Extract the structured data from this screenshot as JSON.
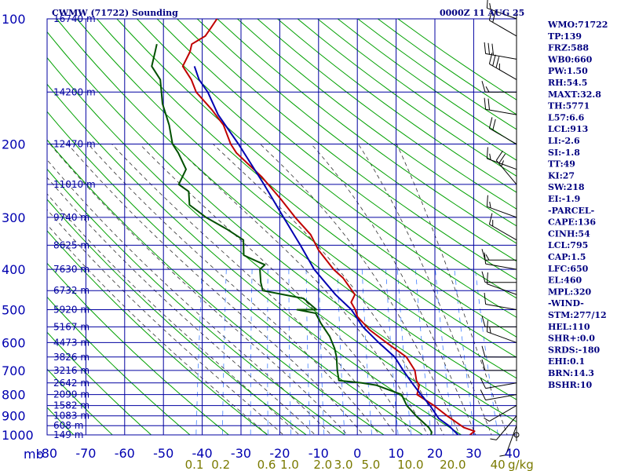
{
  "chart_data": {
    "type": "line",
    "title_left": "CWMW (71722) Sounding",
    "title_right": "0000Z 11 AUG 25",
    "y_axis_unit": "mb",
    "x_axis_unit": "g/kg",
    "pressure_ticks": [
      "100",
      "200",
      "300",
      "400",
      "500",
      "600",
      "700",
      "800",
      "900",
      "1000"
    ],
    "pressure_values": [
      100,
      200,
      300,
      400,
      500,
      600,
      700,
      800,
      900,
      1000
    ],
    "temperature_ticks": [
      "-80",
      "-70",
      "-60",
      "-50",
      "-40",
      "-30",
      "-20",
      "-10",
      "0",
      "10",
      "20",
      "30",
      "40"
    ],
    "mixing_ratio_labels": [
      "0.1",
      "0.2",
      "0.6",
      "1.0",
      "2.0",
      "3.0",
      "5.0",
      "10.0",
      "20.0",
      "40"
    ],
    "height_labels": [
      {
        "p": 100,
        "label": "16740 m"
      },
      {
        "p": 150,
        "label": "14200 m"
      },
      {
        "p": 200,
        "label": "12470 m"
      },
      {
        "p": 250,
        "label": "11010 m"
      },
      {
        "p": 300,
        "label": "9740 m"
      },
      {
        "p": 350,
        "label": "8625 m"
      },
      {
        "p": 400,
        "label": "7630 m"
      },
      {
        "p": 450,
        "label": "6732 m"
      },
      {
        "p": 500,
        "label": "5920 m"
      },
      {
        "p": 550,
        "label": "5167 m"
      },
      {
        "p": 600,
        "label": "4473 m"
      },
      {
        "p": 650,
        "label": "3826 m"
      },
      {
        "p": 700,
        "label": "3216 m"
      },
      {
        "p": 750,
        "label": "2642 m"
      },
      {
        "p": 800,
        "label": "2099 m"
      },
      {
        "p": 850,
        "label": "1582 m"
      },
      {
        "p": 900,
        "label": "1083 m"
      },
      {
        "p": 950,
        "label": "608 m"
      },
      {
        "p": 1000,
        "label": "149 m"
      }
    ],
    "series": [
      {
        "name": "Temperature",
        "color": "#c00000",
        "points": [
          [
            1000,
            29
          ],
          [
            980,
            30
          ],
          [
            960,
            27
          ],
          [
            900,
            22
          ],
          [
            850,
            18
          ],
          [
            800,
            13
          ],
          [
            760,
            13
          ],
          [
            740,
            12
          ],
          [
            700,
            11
          ],
          [
            650,
            8
          ],
          [
            600,
            2
          ],
          [
            560,
            -3
          ],
          [
            520,
            -7
          ],
          [
            500,
            -8
          ],
          [
            480,
            -9.5
          ],
          [
            460,
            -9
          ],
          [
            420,
            -13
          ],
          [
            400,
            -16
          ],
          [
            360,
            -21
          ],
          [
            330,
            -24
          ],
          [
            300,
            -29
          ],
          [
            270,
            -34
          ],
          [
            240,
            -40
          ],
          [
            210,
            -48
          ],
          [
            200,
            -50
          ],
          [
            180,
            -53
          ],
          [
            165,
            -57
          ],
          [
            150,
            -62
          ],
          [
            140,
            -64
          ],
          [
            130,
            -67
          ],
          [
            120,
            -66
          ],
          [
            115,
            -66
          ],
          [
            110,
            -63
          ],
          [
            105,
            -62
          ],
          [
            100,
            -61
          ]
        ]
      },
      {
        "name": "Dewpoint",
        "color": "#005000",
        "points": [
          [
            1000,
            19
          ],
          [
            985,
            19
          ],
          [
            960,
            18
          ],
          [
            900,
            14
          ],
          [
            850,
            11
          ],
          [
            800,
            9
          ],
          [
            760,
            2
          ],
          [
            750,
            -2
          ],
          [
            740,
            -8
          ],
          [
            700,
            -9
          ],
          [
            650,
            -10
          ],
          [
            620,
            -11
          ],
          [
            580,
            -13
          ],
          [
            540,
            -16
          ],
          [
            510,
            -18
          ],
          [
            500,
            -23
          ],
          [
            500,
            -18
          ],
          [
            470,
            -22
          ],
          [
            450,
            -33
          ],
          [
            430,
            -34
          ],
          [
            400,
            -35
          ],
          [
            390,
            -34
          ],
          [
            380,
            -37
          ],
          [
            370,
            -40
          ],
          [
            340,
            -41
          ],
          [
            320,
            -46
          ],
          [
            300,
            -52
          ],
          [
            280,
            -57
          ],
          [
            260,
            -58
          ],
          [
            250,
            -61
          ],
          [
            230,
            -60
          ],
          [
            210,
            -63
          ],
          [
            200,
            -65
          ],
          [
            180,
            -67
          ],
          [
            160,
            -70
          ],
          [
            140,
            -72
          ],
          [
            130,
            -75
          ],
          [
            120,
            -75
          ],
          [
            115,
            -75
          ]
        ]
      },
      {
        "name": "Parcel",
        "color": "#0000b0",
        "points": [
          [
            1000,
            26
          ],
          [
            950,
            23
          ],
          [
            913,
            20
          ],
          [
            850,
            17
          ],
          [
            800,
            14
          ],
          [
            750,
            11
          ],
          [
            700,
            8
          ],
          [
            650,
            5
          ],
          [
            600,
            0
          ],
          [
            550,
            -5
          ],
          [
            500,
            -9
          ],
          [
            460,
            -14
          ],
          [
            400,
            -21
          ],
          [
            350,
            -26
          ],
          [
            300,
            -32
          ],
          [
            250,
            -39
          ],
          [
            200,
            -48
          ],
          [
            170,
            -55
          ],
          [
            150,
            -59
          ],
          [
            140,
            -62
          ],
          [
            130,
            -64
          ]
        ]
      }
    ],
    "wind_barbs": [
      {
        "p": 100,
        "dir": 290,
        "spd": 15
      },
      {
        "p": 110,
        "dir": 300,
        "spd": 20
      },
      {
        "p": 125,
        "dir": 280,
        "spd": 30
      },
      {
        "p": 140,
        "dir": 300,
        "spd": 35
      },
      {
        "p": 150,
        "dir": 270,
        "spd": 15
      },
      {
        "p": 170,
        "dir": 280,
        "spd": 20
      },
      {
        "p": 200,
        "dir": 300,
        "spd": 20
      },
      {
        "p": 230,
        "dir": 290,
        "spd": 15
      },
      {
        "p": 250,
        "dir": 320,
        "spd": 25
      },
      {
        "p": 300,
        "dir": 290,
        "spd": 15
      },
      {
        "p": 340,
        "dir": 300,
        "spd": 15
      },
      {
        "p": 380,
        "dir": 270,
        "spd": 15
      },
      {
        "p": 400,
        "dir": 280,
        "spd": 10
      },
      {
        "p": 430,
        "dir": 270,
        "spd": 10
      },
      {
        "p": 460,
        "dir": 290,
        "spd": 10
      },
      {
        "p": 500,
        "dir": 280,
        "spd": 10
      },
      {
        "p": 550,
        "dir": 270,
        "spd": 10
      },
      {
        "p": 600,
        "dir": 290,
        "spd": 15
      },
      {
        "p": 650,
        "dir": 270,
        "spd": 10
      },
      {
        "p": 700,
        "dir": 270,
        "spd": 10
      },
      {
        "p": 750,
        "dir": 260,
        "spd": 10
      },
      {
        "p": 800,
        "dir": 260,
        "spd": 10
      },
      {
        "p": 850,
        "dir": 240,
        "spd": 5
      },
      {
        "p": 900,
        "dir": 220,
        "spd": 5
      },
      {
        "p": 950,
        "dir": 200,
        "spd": 5
      },
      {
        "p": 1000,
        "dir": 0,
        "spd": 0
      }
    ]
  },
  "indices": [
    "WMO:71722",
    "TP:139",
    "FRZ:588",
    "WB0:660",
    "PW:1.50",
    "RH:54.5",
    "MAXT:32.8",
    "TH:5771",
    "L57:6.6",
    "LCL:913",
    "LI:-2.6",
    "SI:-1.8",
    "TT:49",
    "KI:27",
    "SW:218",
    "EI:-1.9",
    "-PARCEL-",
    "CAPE:136",
    "CINH:54",
    "LCL:795",
    "CAP:1.5",
    "LFC:650",
    "EL:460",
    "MPL:320",
    "-WIND-",
    "STM:277/12",
    "HEL:110",
    "SHR+:0.0",
    "SRDS:-180",
    "EHI:0.1",
    "BRN:14.3",
    "BSHR:10"
  ],
  "colors": {
    "grid": "#0000a0",
    "dry_adiabat": "#00a000",
    "moist_adiabat": "#303030",
    "mixing_ratio": "#4080ff",
    "temperature": "#c00000",
    "dewpoint": "#005000",
    "parcel": "#0000b0"
  }
}
